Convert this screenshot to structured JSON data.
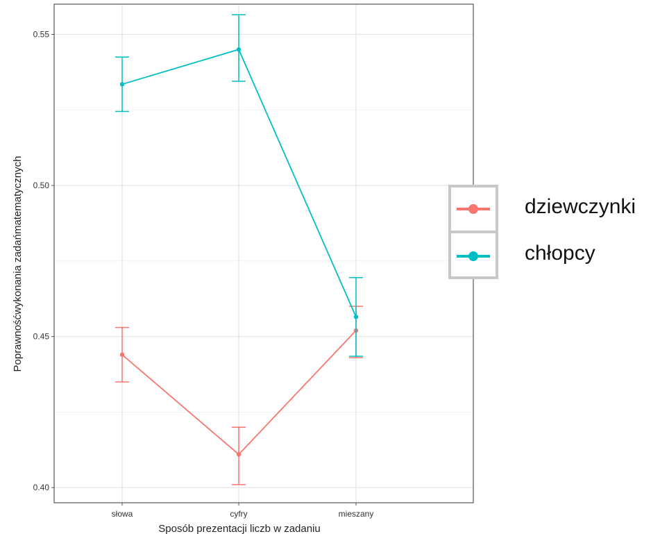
{
  "chart_data": {
    "type": "line",
    "title": "",
    "xlabel": "Sposób prezentacji liczb w zadaniu",
    "ylabel": "Poprawnośćwykonania zadańmatematycznych",
    "categories": [
      "słowa",
      "cyfry",
      "mieszany"
    ],
    "ylim": [
      0.395,
      0.56
    ],
    "yticks": [
      "0.40",
      "0.45",
      "0.50",
      "0.55"
    ],
    "grid": true,
    "legend_position": "right",
    "series": [
      {
        "name": "dziewczynki",
        "color": "#f8766d",
        "values": [
          0.444,
          0.411,
          0.452
        ],
        "ci_low": [
          0.435,
          0.401,
          0.443
        ],
        "ci_high": [
          0.453,
          0.42,
          0.46
        ]
      },
      {
        "name": "chłopcy",
        "color": "#00bfc4",
        "values": [
          0.5335,
          0.545,
          0.4565
        ],
        "ci_low": [
          0.5245,
          0.5345,
          0.4435
        ],
        "ci_high": [
          0.5425,
          0.5565,
          0.4695
        ]
      }
    ]
  },
  "legend": {
    "items": [
      {
        "label": "dziewczynki",
        "color": "#f8766d"
      },
      {
        "label": "chłopcy",
        "color": "#00bfc4"
      }
    ]
  }
}
